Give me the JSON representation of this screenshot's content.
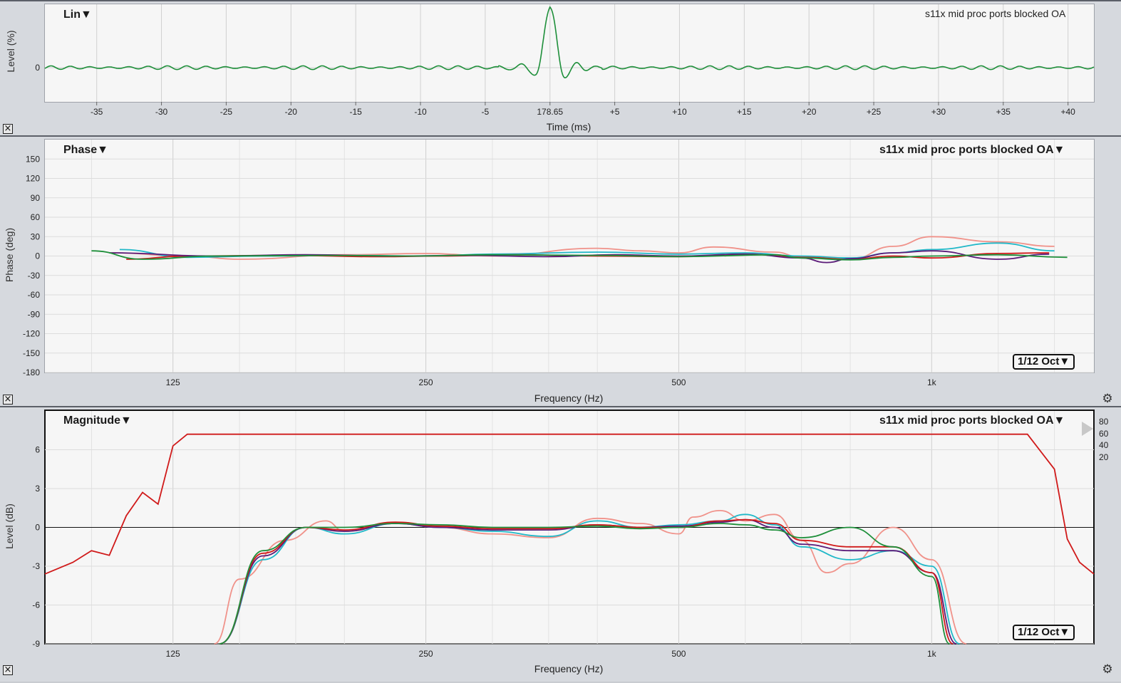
{
  "panes": {
    "impulse": {
      "mode_menu": "Lin▼",
      "measurement_title": "s11x mid proc ports blocked OA",
      "y_axis_label": "Level (%)",
      "x_axis_label": "Time (ms)",
      "y_ticks": [
        "0"
      ],
      "x_ticks": [
        "-35",
        "-30",
        "-25",
        "-20",
        "-15",
        "-10",
        "-5",
        "178.65",
        "+5",
        "+10",
        "+15",
        "+20",
        "+25",
        "+30",
        "+35",
        "+40"
      ],
      "close_icon": "close-box-icon"
    },
    "phase": {
      "mode_menu": "Phase▼",
      "measurement_menu": "s11x mid proc ports blocked OA▼",
      "smoothing_menu": "1/12 Oct▼",
      "y_axis_label": "Phase (deg)",
      "x_axis_label": "Frequency (Hz)",
      "y_ticks": [
        "150",
        "120",
        "90",
        "60",
        "30",
        "0",
        "-30",
        "-60",
        "-90",
        "-120",
        "-150",
        "-180"
      ],
      "x_ticks": [
        "125",
        "250",
        "500",
        "1k"
      ],
      "close_icon": "close-box-icon",
      "settings_icon": "gear-icon"
    },
    "magnitude": {
      "mode_menu": "Magnitude▼",
      "measurement_menu": "s11x mid proc ports blocked OA▼",
      "smoothing_menu": "1/12 Oct▼",
      "y_axis_label": "Level (dB)",
      "x_axis_label": "Frequency (Hz)",
      "y_ticks": [
        "6",
        "3",
        "0",
        "-3",
        "-6",
        "-9"
      ],
      "x_ticks": [
        "125",
        "250",
        "500",
        "1k"
      ],
      "coherence_scale": [
        "80",
        "60",
        "40",
        "20"
      ],
      "close_icon": "close-box-icon",
      "settings_icon": "gear-icon"
    }
  },
  "chart_data": [
    {
      "type": "line",
      "title": "s11x mid proc ports blocked OA",
      "xlabel": "Time (ms)",
      "ylabel": "Level (%)",
      "xlim": [
        -39,
        42
      ],
      "x_reference": 178.65,
      "series": [
        {
          "color": "#1e8f3a",
          "x": [
            -39,
            -30,
            -20,
            -10,
            -5,
            -3,
            -2,
            -1,
            0,
            1,
            2,
            3,
            5,
            10,
            20,
            30,
            40
          ],
          "y": [
            0,
            0,
            0,
            0,
            0,
            -0.08,
            -0.5,
            -0.3,
            1.3,
            -0.5,
            -0.1,
            -0.05,
            0,
            0,
            0,
            0,
            0
          ]
        }
      ]
    },
    {
      "type": "line",
      "xlabel": "Frequency (Hz)",
      "ylabel": "Phase (deg)",
      "ylim": [
        -180,
        180
      ],
      "x_scale": "log",
      "xlim": [
        88,
        1560
      ],
      "series": [
        {
          "color": "#f0928a",
          "x": [
            105,
            130,
            150,
            200,
            250,
            300,
            400,
            450,
            500,
            550,
            650,
            700,
            800,
            900,
            1000,
            1200,
            1400
          ],
          "y": [
            5,
            0,
            -5,
            2,
            4,
            0,
            12,
            8,
            5,
            14,
            6,
            -2,
            -5,
            15,
            30,
            22,
            15
          ]
        },
        {
          "color": "#20b8c8",
          "x": [
            108,
            130,
            160,
            200,
            250,
            300,
            400,
            500,
            600,
            700,
            800,
            900,
            1000,
            1200,
            1400
          ],
          "y": [
            10,
            -2,
            0,
            1,
            0,
            3,
            6,
            3,
            5,
            0,
            -3,
            5,
            10,
            20,
            8
          ]
        },
        {
          "color": "#d01a1a",
          "x": [
            110,
            130,
            170,
            220,
            260,
            320,
            400,
            500,
            600,
            700,
            800,
            900,
            1000,
            1200,
            1380
          ],
          "y": [
            -5,
            0,
            1,
            -1,
            0,
            2,
            0,
            -1,
            3,
            -2,
            -5,
            0,
            -3,
            4,
            5
          ]
        },
        {
          "color": "#5a1a78",
          "x": [
            105,
            140,
            180,
            230,
            280,
            350,
            420,
            500,
            600,
            700,
            750,
            800,
            900,
            1000,
            1200,
            1380
          ],
          "y": [
            5,
            0,
            2,
            0,
            1,
            -1,
            2,
            0,
            3,
            -3,
            -10,
            -4,
            5,
            8,
            -5,
            3
          ]
        },
        {
          "color": "#1e8f3a",
          "x": [
            100,
            115,
            140,
            190,
            240,
            300,
            400,
            500,
            650,
            700,
            800,
            900,
            1000,
            1200,
            1450
          ],
          "y": [
            8,
            -5,
            0,
            1,
            0,
            2,
            1,
            -1,
            2,
            -3,
            -6,
            -2,
            0,
            2,
            -2
          ]
        }
      ]
    },
    {
      "type": "line",
      "xlabel": "Frequency (Hz)",
      "ylabel": "Level (dB)",
      "ylim": [
        -9,
        9
      ],
      "x_scale": "log",
      "xlim": [
        88,
        1560
      ],
      "series": [
        {
          "color": "#d01a1a",
          "axis": "coherence",
          "x": [
            88,
            95,
            100,
            105,
            110,
            115,
            120,
            125,
            130,
            200,
            400,
            700,
            1000,
            1300,
            1400,
            1450,
            1500,
            1560
          ],
          "y": [
            30,
            35,
            40,
            38,
            55,
            65,
            60,
            85,
            90,
            90,
            90,
            90,
            90,
            90,
            75,
            45,
            35,
            30
          ]
        },
        {
          "color": "#f0928a",
          "x": [
            140,
            150,
            170,
            190,
            200,
            230,
            260,
            300,
            350,
            400,
            450,
            500,
            520,
            560,
            600,
            650,
            700,
            750,
            800,
            900,
            1000,
            1100
          ],
          "y": [
            -9,
            -4,
            -1,
            0.5,
            -0.3,
            0.3,
            0,
            -0.5,
            -0.8,
            0.7,
            0.3,
            -0.5,
            0.8,
            1.3,
            0.5,
            1.0,
            -1.0,
            -3.5,
            -2.8,
            0.0,
            -2.5,
            -9
          ]
        },
        {
          "color": "#20b8c8",
          "x": [
            142,
            160,
            180,
            200,
            230,
            260,
            300,
            350,
            400,
            450,
            500,
            560,
            600,
            650,
            700,
            800,
            900,
            1000,
            1080
          ],
          "y": [
            -9,
            -2.5,
            0,
            -0.5,
            0.3,
            0,
            -0.3,
            -0.7,
            0.5,
            0,
            0.2,
            0.5,
            1.0,
            0.2,
            -1.5,
            -2.5,
            -1.8,
            -3.0,
            -9
          ]
        },
        {
          "color": "#5a1a78",
          "x": [
            142,
            160,
            180,
            200,
            230,
            260,
            300,
            350,
            400,
            450,
            500,
            560,
            600,
            650,
            700,
            800,
            900,
            1000,
            1070
          ],
          "y": [
            -9,
            -2.2,
            0,
            -0.3,
            0.3,
            0,
            -0.2,
            -0.2,
            0.2,
            0,
            0.1,
            0.4,
            0.6,
            0,
            -1.3,
            -1.8,
            -1.8,
            -3.5,
            -9
          ]
        },
        {
          "color": "#d01a1a",
          "x": [
            142,
            160,
            180,
            200,
            230,
            260,
            300,
            350,
            400,
            450,
            500,
            560,
            600,
            650,
            700,
            800,
            900,
            1000,
            1060
          ],
          "y": [
            -9,
            -2,
            0,
            -0.2,
            0.4,
            0.1,
            -0.1,
            -0.1,
            0.2,
            0,
            0,
            0.5,
            0.6,
            0.3,
            -1.0,
            -1.5,
            -1.5,
            -3.5,
            -9
          ]
        },
        {
          "color": "#1e8f3a",
          "x": [
            142,
            160,
            180,
            200,
            230,
            260,
            300,
            350,
            400,
            450,
            500,
            560,
            600,
            650,
            700,
            800,
            900,
            1000,
            1050
          ],
          "y": [
            -9,
            -1.8,
            0,
            0,
            0.3,
            0.2,
            0,
            0,
            0.1,
            -0.1,
            0,
            0.3,
            0.2,
            -0.2,
            -0.8,
            0,
            -1.5,
            -3.8,
            -9
          ]
        }
      ]
    }
  ]
}
